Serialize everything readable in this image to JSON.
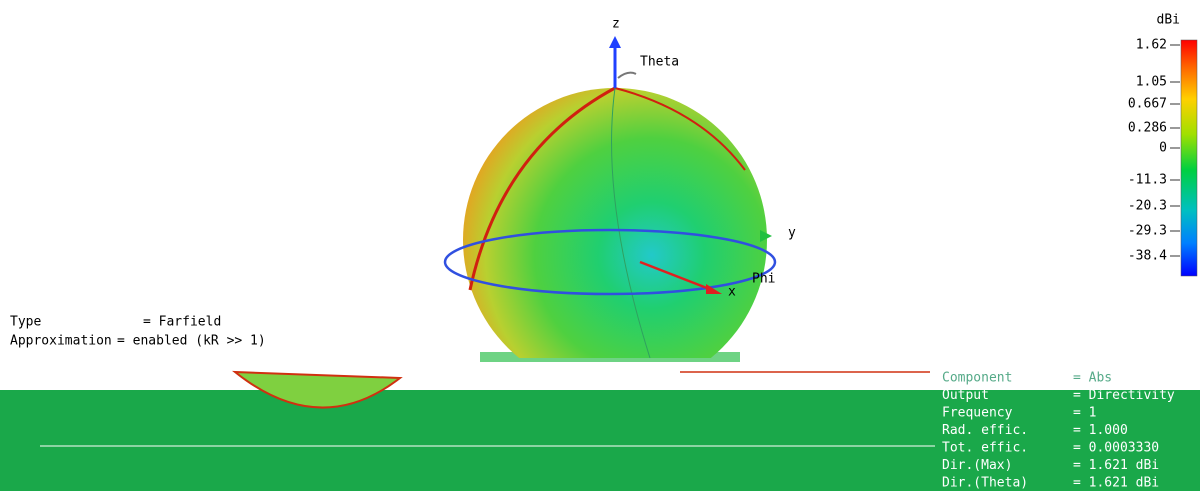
{
  "colorbar": {
    "unit": "dBi",
    "labels": [
      "1.62",
      "1.05",
      "0.667",
      "0.286",
      "0",
      "-11.3",
      "-20.3",
      "-29.3",
      "-38.4"
    ]
  },
  "axes": {
    "z": "z",
    "theta": "Theta",
    "y": "y",
    "phi": "Phi",
    "x": "x"
  },
  "info_left": [
    {
      "key": "Type",
      "value": "= Farfield"
    },
    {
      "key": "Approximation",
      "value": "= enabled (kR >> 1)"
    }
  ],
  "info_right": [
    {
      "key": "Component",
      "value": "= Abs"
    },
    {
      "key": "Output",
      "value": "= Directivity"
    },
    {
      "key": "Frequency",
      "value": "= 1"
    },
    {
      "key": "Rad. effic.",
      "value": "= 1.000"
    },
    {
      "key": "Tot. effic.",
      "value": "= 0.0003330"
    },
    {
      "key": "Dir.(Max)",
      "value": "= 1.621 dBi"
    },
    {
      "key": "Dir.(Theta)",
      "value": "= 1.621 dBi"
    }
  ]
}
